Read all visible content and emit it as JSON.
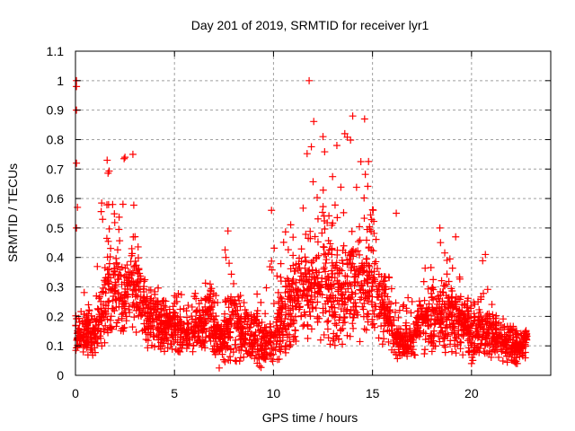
{
  "chart_data": {
    "type": "scatter",
    "title": "Day 201 of 2019, SRMTID for receiver lyr1",
    "xlabel": "GPS time / hours",
    "ylabel": "SRMTID / TECUs",
    "xlim": [
      0,
      24
    ],
    "ylim": [
      0,
      1.1
    ],
    "xticks": [
      0,
      5,
      10,
      15,
      20
    ],
    "xtick_labels": [
      "0",
      "5",
      "10",
      "15",
      "20"
    ],
    "yticks": [
      0,
      0.1,
      0.2,
      0.3,
      0.4,
      0.5,
      0.6,
      0.7,
      0.8,
      0.9,
      1,
      1.1
    ],
    "ytick_labels": [
      "0",
      "0.1",
      "0.2",
      "0.3",
      "0.4",
      "0.5",
      "0.6",
      "0.7",
      "0.8",
      "0.9",
      "1",
      "1.1"
    ],
    "grid": true,
    "marker": "+",
    "marker_color": "#ff0000",
    "series": [
      {
        "name": "lyr1",
        "envelope": {
          "x": [
            0,
            0.1,
            0.3,
            0.6,
            1.0,
            1.3,
            1.6,
            2.0,
            2.4,
            2.8,
            3.0,
            3.3,
            3.7,
            4.2,
            4.8,
            5.3,
            5.8,
            6.3,
            6.8,
            7.2,
            7.6,
            8.0,
            8.5,
            9.0,
            9.5,
            10.0,
            10.5,
            11.0,
            11.5,
            12.0,
            12.5,
            13.0,
            13.5,
            14.0,
            14.5,
            14.8,
            15.2,
            15.6,
            16.0,
            16.5,
            17.0,
            17.5,
            18.0,
            18.5,
            19.0,
            19.5,
            20.0,
            20.5,
            21.0,
            21.5,
            22.0,
            22.5,
            22.8
          ],
          "typical": [
            0.15,
            0.14,
            0.13,
            0.14,
            0.13,
            0.2,
            0.3,
            0.28,
            0.24,
            0.3,
            0.3,
            0.25,
            0.18,
            0.17,
            0.16,
            0.15,
            0.14,
            0.16,
            0.2,
            0.1,
            0.15,
            0.18,
            0.14,
            0.12,
            0.1,
            0.12,
            0.18,
            0.25,
            0.28,
            0.3,
            0.3,
            0.28,
            0.28,
            0.3,
            0.3,
            0.35,
            0.28,
            0.22,
            0.14,
            0.1,
            0.12,
            0.18,
            0.2,
            0.18,
            0.2,
            0.17,
            0.14,
            0.15,
            0.13,
            0.12,
            0.1,
            0.09,
            0.12
          ],
          "max": [
            1.0,
            0.55,
            0.3,
            0.28,
            0.25,
            0.6,
            0.75,
            0.55,
            0.74,
            0.76,
            0.55,
            0.35,
            0.3,
            0.3,
            0.3,
            0.28,
            0.27,
            0.3,
            0.33,
            0.25,
            0.5,
            0.35,
            0.3,
            0.28,
            0.3,
            0.45,
            0.55,
            0.55,
            0.7,
            1.0,
            0.81,
            0.7,
            0.82,
            0.88,
            0.87,
            0.75,
            0.55,
            0.45,
            0.3,
            0.25,
            0.3,
            0.33,
            0.5,
            0.45,
            0.48,
            0.3,
            0.3,
            0.42,
            0.25,
            0.2,
            0.17,
            0.16,
            0.15
          ],
          "min": [
            0.07,
            0.07,
            0.08,
            0.07,
            0.06,
            0.08,
            0.12,
            0.13,
            0.12,
            0.15,
            0.14,
            0.1,
            0.07,
            0.07,
            0.07,
            0.06,
            0.08,
            0.08,
            0.08,
            0.02,
            0.05,
            0.05,
            0.04,
            0.03,
            0.02,
            0.04,
            0.05,
            0.08,
            0.1,
            0.12,
            0.12,
            0.1,
            0.1,
            0.1,
            0.12,
            0.15,
            0.12,
            0.08,
            0.06,
            0.04,
            0.05,
            0.06,
            0.07,
            0.06,
            0.08,
            0.07,
            0.03,
            0.05,
            0.05,
            0.04,
            0.04,
            0.04,
            0.06
          ]
        },
        "notable_points": [
          {
            "x": 0.05,
            "y": 1.0
          },
          {
            "x": 0.05,
            "y": 0.98
          },
          {
            "x": 0.05,
            "y": 0.9
          },
          {
            "x": 0.05,
            "y": 0.72
          },
          {
            "x": 0.1,
            "y": 0.57
          },
          {
            "x": 0.05,
            "y": 0.5
          },
          {
            "x": 1.6,
            "y": 0.73
          },
          {
            "x": 2.5,
            "y": 0.74
          },
          {
            "x": 2.9,
            "y": 0.75
          },
          {
            "x": 7.7,
            "y": 0.49
          },
          {
            "x": 9.9,
            "y": 0.56
          },
          {
            "x": 11.8,
            "y": 1.0
          },
          {
            "x": 12.5,
            "y": 0.81
          },
          {
            "x": 13.2,
            "y": 0.78
          },
          {
            "x": 13.6,
            "y": 0.82
          },
          {
            "x": 14.0,
            "y": 0.88
          },
          {
            "x": 14.6,
            "y": 0.87
          },
          {
            "x": 16.2,
            "y": 0.55
          },
          {
            "x": 18.4,
            "y": 0.5
          },
          {
            "x": 19.2,
            "y": 0.47
          },
          {
            "x": 20.7,
            "y": 0.41
          },
          {
            "x": 20.0,
            "y": 0.04
          }
        ]
      }
    ]
  }
}
